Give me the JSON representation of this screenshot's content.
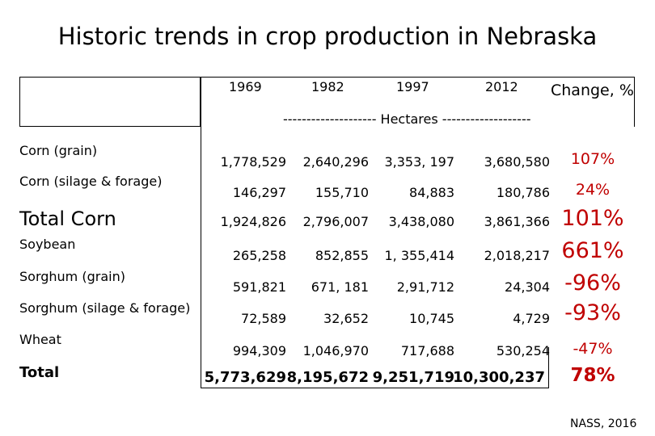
{
  "title": "Historic trends in crop production in Nebraska",
  "columns": {
    "years": [
      "1969",
      "1982",
      "1997",
      "2012"
    ],
    "change": "Change, %"
  },
  "units": "-------------------- Hectares -------------------",
  "rows": [
    {
      "crop": "Corn (grain)",
      "values": [
        "1,778,529",
        "2,640,296",
        "3,353, 197",
        "3,680,580"
      ],
      "change": "107%"
    },
    {
      "crop": "Corn (silage & forage)",
      "values": [
        "146,297",
        "155,710",
        "84,883",
        "180,786"
      ],
      "change": "24%"
    },
    {
      "crop": "Total Corn",
      "values": [
        "1,924,826",
        "2,796,007",
        "3,438,080",
        "3,861,366"
      ],
      "change": "101%"
    },
    {
      "crop": "Soybean",
      "values": [
        "265,258",
        "852,855",
        "1, 355,414",
        "2,018,217"
      ],
      "change": "661%"
    },
    {
      "crop": "Sorghum (grain)",
      "values": [
        "591,821",
        "671, 181",
        "2,91,712",
        "24,304"
      ],
      "change": "-96%"
    },
    {
      "crop": "Sorghum (silage & forage)",
      "values": [
        "72,589",
        "32,652",
        "10,745",
        "4,729"
      ],
      "change": "-93%"
    },
    {
      "crop": "Wheat",
      "values": [
        "994,309",
        "1,046,970",
        "717,688",
        "530,254"
      ],
      "change": "-47%"
    },
    {
      "crop": "Total",
      "values": [
        "5,773,629",
        "8,195,672",
        "9,251,719",
        "10,300,237"
      ],
      "change": "78%"
    }
  ],
  "source": "NASS, 2016",
  "colors": {
    "change": "#c00000",
    "text": "#000000"
  }
}
